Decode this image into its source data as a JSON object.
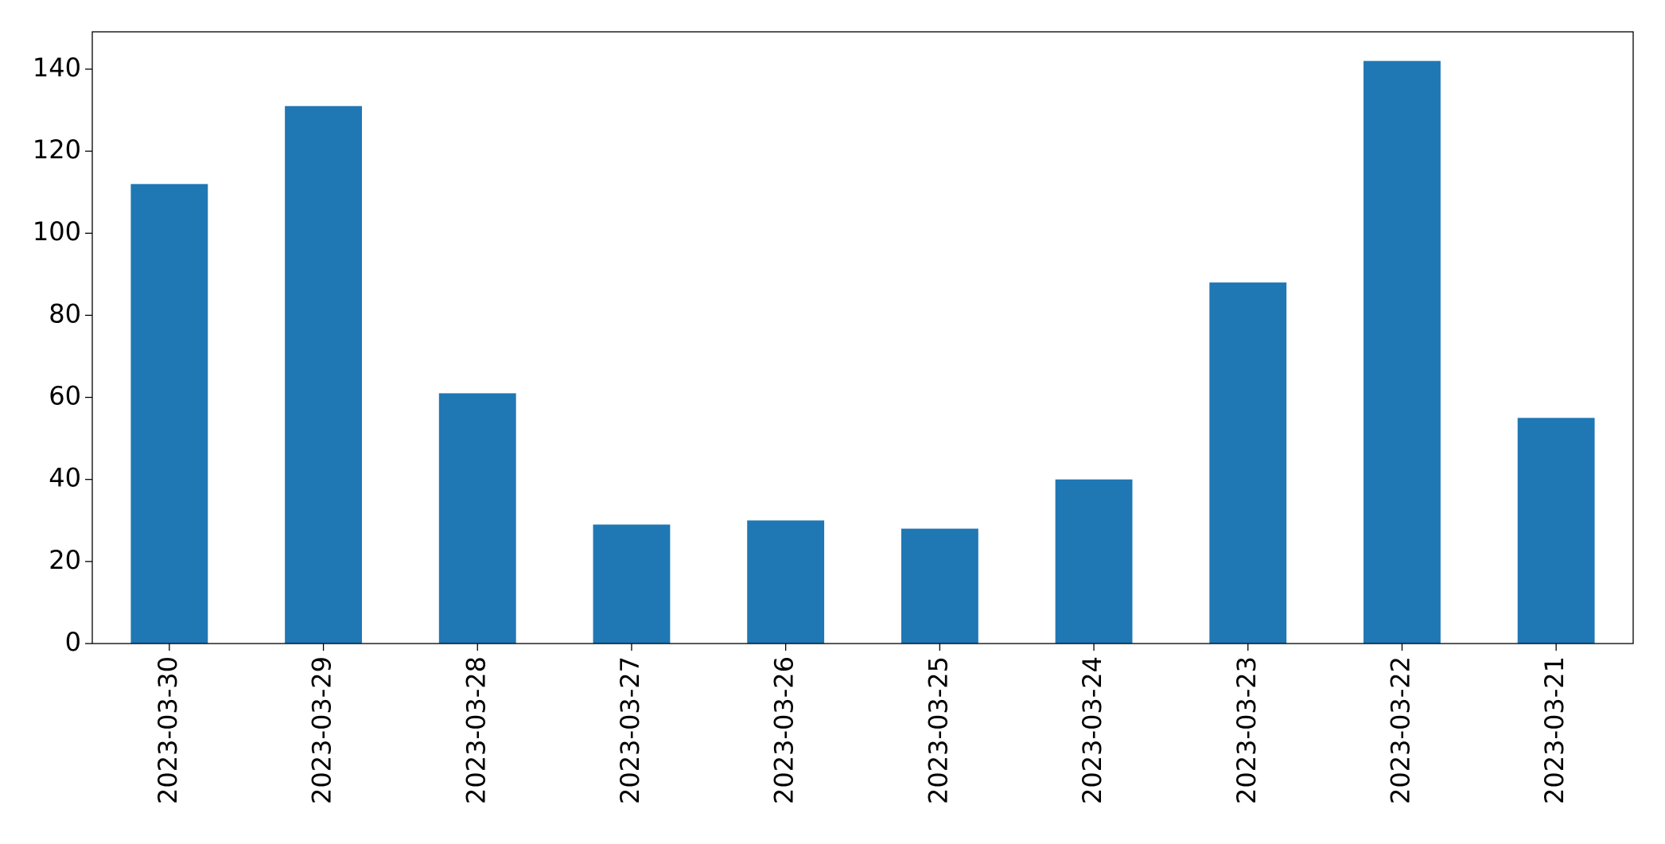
{
  "chart_data": {
    "type": "bar",
    "categories": [
      "2023-03-30",
      "2023-03-29",
      "2023-03-28",
      "2023-03-27",
      "2023-03-26",
      "2023-03-25",
      "2023-03-24",
      "2023-03-23",
      "2023-03-22",
      "2023-03-21"
    ],
    "values": [
      112,
      131,
      61,
      29,
      30,
      28,
      40,
      88,
      142,
      55
    ],
    "color": "#1f77b4",
    "ylim": [
      0,
      149.1
    ],
    "yticks": [
      0,
      20,
      40,
      60,
      80,
      100,
      120,
      140
    ],
    "grid": false
  }
}
